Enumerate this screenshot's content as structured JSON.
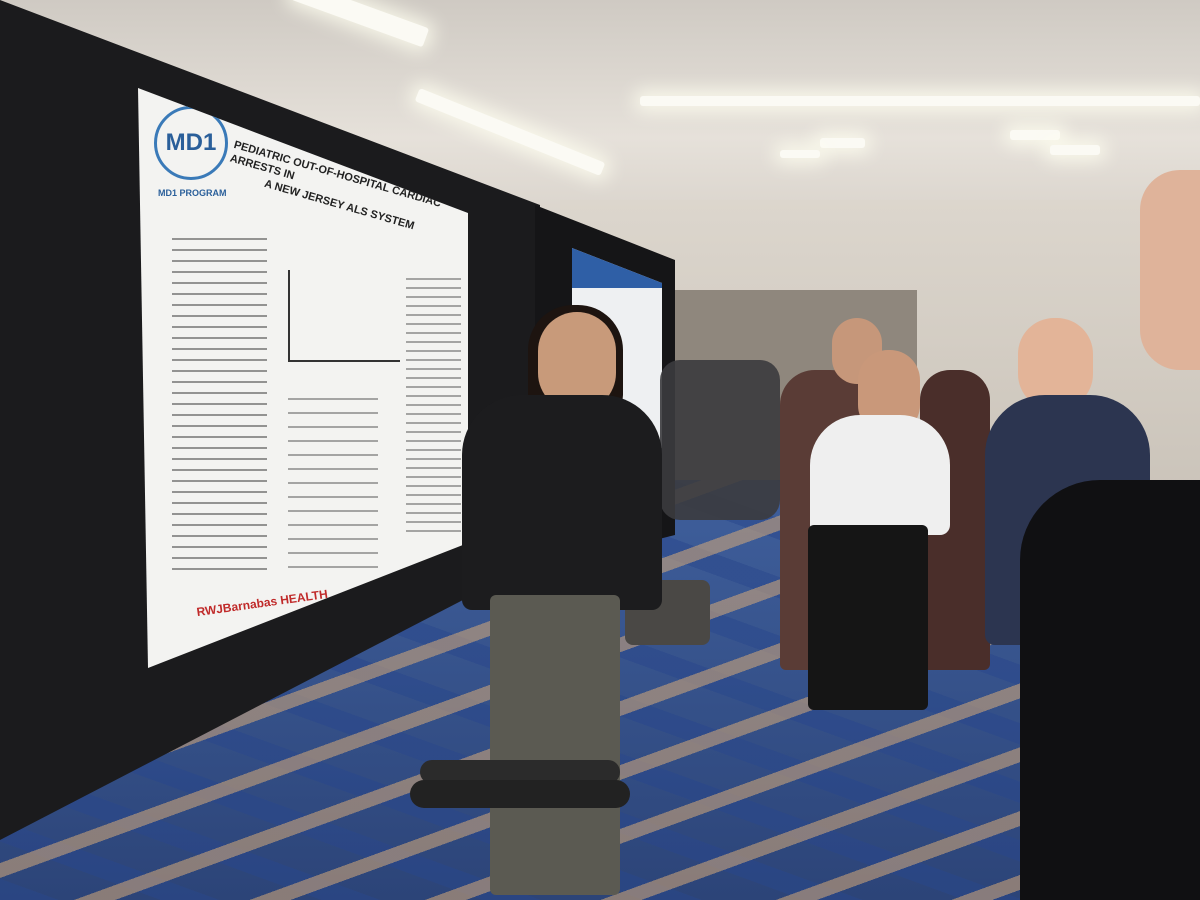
{
  "poster": {
    "title_line1": "PEDIATRIC OUT-OF-HOSPITAL CARDIAC ARRESTS IN",
    "title_line2": "A NEW JERSEY ALS SYSTEM",
    "logo_text": "MD1",
    "program": "MD1 PROGRAM",
    "footer_logo": "RWJBarnabas HEALTH"
  },
  "colors": {
    "logo_blue": "#2a5f9a",
    "footer_red": "#c02a2a",
    "board_black": "#1b1b1d",
    "carpet_blue": "#3f5f9c"
  }
}
